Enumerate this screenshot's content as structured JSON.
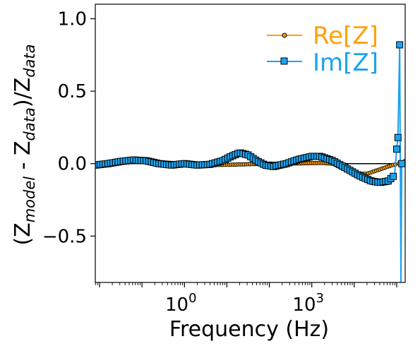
{
  "chart_data": {
    "type": "line",
    "title": "",
    "xlabel": "Frequency (Hz)",
    "ylabel_parts": [
      "(Z",
      "model",
      " - Z",
      "data",
      ")/Z",
      "data"
    ],
    "xscale": "log",
    "x_log10_range": [
      -2.1,
      5.2
    ],
    "ylim": [
      -0.82,
      1.1
    ],
    "yticks": [
      -0.5,
      0.0,
      0.5,
      1.0
    ],
    "ytick_labels": [
      "−0.5",
      "0.0",
      "0.5",
      "1.0"
    ],
    "xticks": [
      {
        "base": "10",
        "exp": "0",
        "log10": 0
      },
      {
        "base": "10",
        "exp": "3",
        "log10": 3
      }
    ],
    "reference_line_y": 0,
    "legend_position": "top-right",
    "grid": false,
    "series": [
      {
        "name": "Re[Z]",
        "color": "#ffa10a",
        "marker": "circle",
        "points_log10f": [
          [
            -2.1,
            -0.005
          ],
          [
            -1.6,
            0.005
          ],
          [
            -1.0,
            0.015
          ],
          [
            -0.5,
            0.008
          ],
          [
            0.0,
            0.0
          ],
          [
            0.5,
            -0.01
          ],
          [
            1.0,
            -0.008
          ],
          [
            1.5,
            -0.004
          ],
          [
            2.0,
            0.0
          ],
          [
            2.4,
            0.0
          ],
          [
            2.8,
            0.002
          ],
          [
            3.2,
            0.005
          ],
          [
            3.5,
            0.0
          ],
          [
            3.7,
            -0.03
          ],
          [
            4.0,
            -0.07
          ],
          [
            4.3,
            -0.07
          ],
          [
            4.6,
            -0.04
          ],
          [
            4.9,
            -0.01
          ],
          [
            5.05,
            0.0
          ],
          [
            5.15,
            0.01
          ],
          [
            5.2,
            0.02
          ]
        ]
      },
      {
        "name": "Im[Z]",
        "color": "#1aa3f0",
        "marker": "square",
        "points_log10f": [
          [
            -2.1,
            -0.01
          ],
          [
            -1.8,
            0.0
          ],
          [
            -1.5,
            0.015
          ],
          [
            -1.2,
            0.025
          ],
          [
            -0.9,
            0.02
          ],
          [
            -0.6,
            0.0
          ],
          [
            -0.3,
            -0.01
          ],
          [
            0.0,
            0.0
          ],
          [
            0.3,
            -0.01
          ],
          [
            0.6,
            -0.005
          ],
          [
            0.9,
            0.02
          ],
          [
            1.1,
            0.05
          ],
          [
            1.3,
            0.075
          ],
          [
            1.5,
            0.06
          ],
          [
            1.7,
            0.02
          ],
          [
            1.9,
            -0.01
          ],
          [
            2.1,
            -0.02
          ],
          [
            2.4,
            0.0
          ],
          [
            2.7,
            0.03
          ],
          [
            3.0,
            0.05
          ],
          [
            3.2,
            0.05
          ],
          [
            3.5,
            0.02
          ],
          [
            3.8,
            -0.03
          ],
          [
            4.1,
            -0.08
          ],
          [
            4.4,
            -0.12
          ],
          [
            4.6,
            -0.13
          ],
          [
            4.8,
            -0.12
          ],
          [
            4.95,
            -0.08
          ],
          [
            5.0,
            0.1
          ],
          [
            5.03,
            0.18
          ],
          [
            5.07,
            0.82
          ],
          [
            5.1,
            -0.82
          ],
          [
            5.12,
            0.0
          ]
        ]
      }
    ]
  }
}
